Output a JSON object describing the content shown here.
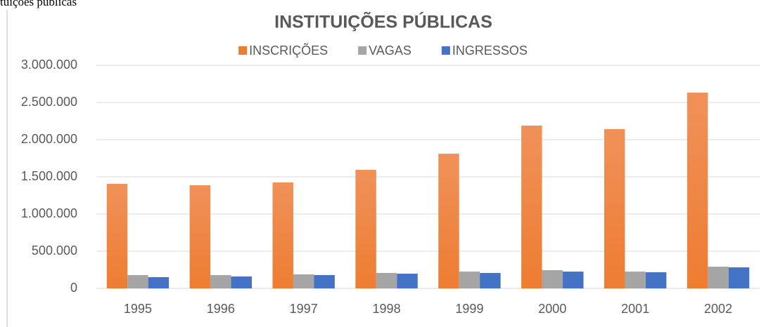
{
  "caption": "tuições públicas",
  "chart_data": {
    "type": "bar",
    "title": "INSTITUIÇÕES PÚBLICAS",
    "categories": [
      "1995",
      "1996",
      "1997",
      "1998",
      "1999",
      "2000",
      "2001",
      "2002"
    ],
    "series": [
      {
        "name": "INSCRIÇÕES",
        "color": "#ed7d31",
        "values": [
          1406000,
          1387000,
          1425000,
          1594000,
          1811000,
          2189000,
          2142000,
          2632000
        ]
      },
      {
        "name": "VAGAS",
        "color": "#a5a5a5",
        "values": [
          179000,
          179000,
          189000,
          208000,
          226000,
          245000,
          226000,
          292000
        ]
      },
      {
        "name": "INGRESSOS",
        "color": "#4472c4",
        "values": [
          151000,
          160000,
          179000,
          198000,
          208000,
          226000,
          217000,
          283000
        ]
      }
    ],
    "ylim": [
      0,
      3000000
    ],
    "yticks": [
      0,
      {
        "value": 500000,
        "label": "500.000"
      },
      {
        "value": 1000000,
        "label": "1.000.000"
      },
      {
        "value": 1500000,
        "label": "1.500.000"
      },
      {
        "value": 2000000,
        "label": "2.000.000"
      },
      {
        "value": 2500000,
        "label": "2.500.000"
      },
      {
        "value": 3000000,
        "label": "3.000.000"
      }
    ],
    "grid": true,
    "legend": "top"
  }
}
